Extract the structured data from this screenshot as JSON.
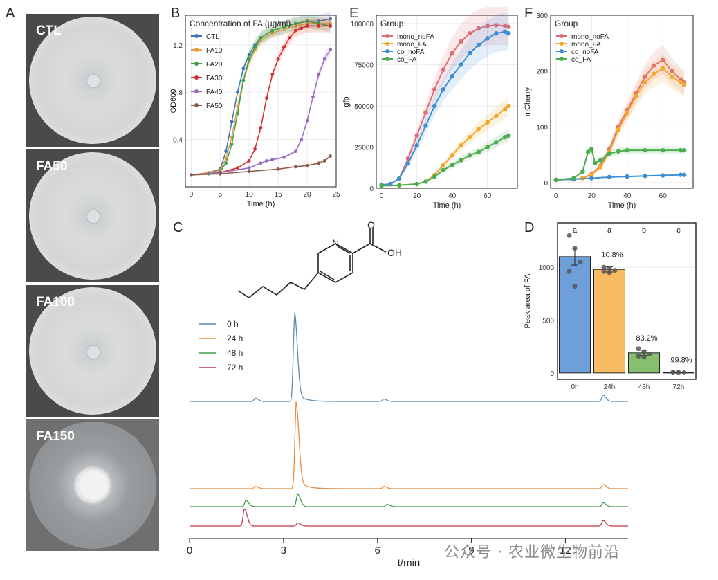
{
  "panel_letters": {
    "A": "A",
    "B": "B",
    "C": "C",
    "D": "D",
    "E": "E",
    "F": "F"
  },
  "panelA": {
    "plates": [
      {
        "label": "CTL"
      },
      {
        "label": "FA50"
      },
      {
        "label": "FA100"
      },
      {
        "label": "FA150"
      }
    ]
  },
  "colors": {
    "CTL": "#3a74b2",
    "FA10": "#f09a3e",
    "FA20": "#3f9e46",
    "FA30": "#d42a2a",
    "FA40": "#9a6bbf",
    "FA50": "#8b5a4b",
    "mono_noFA": "#e06c75",
    "mono_FA": "#f4a82c",
    "co_noFA": "#3d8ed4",
    "co_FA": "#4cad4f",
    "c0h": "#5b8cb0",
    "c24h": "#e88c3c",
    "c48h": "#3e9a4a",
    "c72h": "#c2384a"
  },
  "chart_data": [
    {
      "panel": "B",
      "type": "line",
      "title": "Concentration of FA (μg/ml)",
      "xlabel": "Time (h)",
      "ylabel": "OD600",
      "xlim": [
        -1,
        25
      ],
      "ylim": [
        0,
        1.45
      ],
      "xticks": [
        "0",
        "5",
        "10",
        "15",
        "20",
        "25"
      ],
      "yticks": [
        "0.4",
        "0.8",
        "1.2"
      ],
      "legend_position": "top-left",
      "series": [
        {
          "name": "CTL",
          "x": [
            0,
            3,
            5,
            6,
            7,
            8,
            9,
            10,
            11,
            12,
            14,
            16,
            18,
            20,
            22,
            24
          ],
          "y": [
            0.1,
            0.12,
            0.15,
            0.3,
            0.55,
            0.8,
            1.0,
            1.12,
            1.2,
            1.26,
            1.32,
            1.35,
            1.38,
            1.4,
            1.4,
            1.42
          ]
        },
        {
          "name": "FA10",
          "x": [
            0,
            3,
            5,
            6,
            7,
            8,
            9,
            10,
            11,
            12,
            14,
            16,
            18,
            20,
            22,
            24
          ],
          "y": [
            0.1,
            0.12,
            0.14,
            0.24,
            0.42,
            0.68,
            0.9,
            1.06,
            1.16,
            1.24,
            1.3,
            1.33,
            1.36,
            1.38,
            1.38,
            1.38
          ]
        },
        {
          "name": "FA20",
          "x": [
            0,
            3,
            5,
            6,
            7,
            8,
            9,
            10,
            11,
            12,
            14,
            16,
            18,
            20,
            22,
            24
          ],
          "y": [
            0.1,
            0.11,
            0.13,
            0.2,
            0.36,
            0.62,
            0.9,
            1.08,
            1.18,
            1.26,
            1.32,
            1.35,
            1.38,
            1.4,
            1.38,
            1.36
          ]
        },
        {
          "name": "FA30",
          "x": [
            0,
            5,
            8,
            10,
            11,
            12,
            13,
            14,
            15,
            16,
            17,
            18,
            19,
            20,
            22,
            24
          ],
          "y": [
            0.1,
            0.12,
            0.16,
            0.22,
            0.32,
            0.5,
            0.75,
            0.95,
            1.08,
            1.18,
            1.26,
            1.32,
            1.34,
            1.36,
            1.36,
            1.36
          ]
        },
        {
          "name": "FA40",
          "x": [
            0,
            5,
            10,
            12,
            13,
            14,
            16,
            18,
            19,
            20,
            21,
            22,
            23,
            24
          ],
          "y": [
            0.1,
            0.12,
            0.16,
            0.2,
            0.22,
            0.23,
            0.25,
            0.3,
            0.4,
            0.56,
            0.76,
            0.95,
            1.08,
            1.16
          ]
        },
        {
          "name": "FA50",
          "x": [
            0,
            5,
            10,
            15,
            18,
            20,
            22,
            23,
            24
          ],
          "y": [
            0.1,
            0.11,
            0.13,
            0.15,
            0.17,
            0.18,
            0.2,
            0.22,
            0.26
          ]
        }
      ]
    },
    {
      "panel": "E",
      "type": "line",
      "title": "Group",
      "xlabel": "Time (h)",
      "ylabel": "gfp",
      "xlim": [
        -3,
        77
      ],
      "ylim": [
        0,
        105000
      ],
      "xticks": [
        "0",
        "20",
        "40",
        "60"
      ],
      "yticks": [
        "0",
        "25000",
        "50000",
        "75000",
        "100000"
      ],
      "legend_position": "top-left",
      "series": [
        {
          "name": "mono_noFA",
          "x": [
            0,
            5,
            10,
            15,
            20,
            25,
            30,
            35,
            40,
            45,
            50,
            55,
            60,
            65,
            70,
            72
          ],
          "y": [
            2000,
            2500,
            6000,
            18000,
            32000,
            46000,
            60000,
            72000,
            82000,
            89000,
            94000,
            97000,
            98500,
            99000,
            98500,
            98000
          ]
        },
        {
          "name": "mono_FA",
          "x": [
            0,
            10,
            20,
            25,
            30,
            35,
            40,
            45,
            50,
            55,
            60,
            65,
            70,
            72
          ],
          "y": [
            1500,
            1800,
            2500,
            4000,
            8000,
            14000,
            20000,
            26000,
            31000,
            36000,
            40000,
            44000,
            48000,
            50000
          ]
        },
        {
          "name": "co_noFA",
          "x": [
            0,
            5,
            10,
            15,
            20,
            25,
            30,
            35,
            40,
            45,
            50,
            55,
            60,
            65,
            70,
            72
          ],
          "y": [
            2000,
            2500,
            6000,
            15000,
            26000,
            38000,
            50000,
            60000,
            68000,
            75000,
            82000,
            87000,
            91000,
            94000,
            95000,
            94000
          ]
        },
        {
          "name": "co_FA",
          "x": [
            0,
            10,
            20,
            25,
            30,
            35,
            40,
            45,
            50,
            55,
            60,
            65,
            70,
            72
          ],
          "y": [
            1500,
            1800,
            2500,
            4000,
            7000,
            11000,
            14000,
            17000,
            20000,
            22000,
            25000,
            28000,
            31000,
            32000
          ]
        }
      ]
    },
    {
      "panel": "F",
      "type": "line",
      "title": "Group",
      "xlabel": "Time (h)",
      "ylabel": "mCherry",
      "xlim": [
        -3,
        77
      ],
      "ylim": [
        -10,
        300
      ],
      "xticks": [
        "0",
        "20",
        "40",
        "60"
      ],
      "yticks": [
        "0",
        "100",
        "200",
        "300"
      ],
      "legend_position": "top-left",
      "series": [
        {
          "name": "mono_noFA",
          "x": [
            0,
            10,
            15,
            20,
            25,
            30,
            35,
            40,
            45,
            50,
            55,
            60,
            65,
            70,
            72
          ],
          "y": [
            5,
            6,
            8,
            15,
            30,
            60,
            100,
            130,
            160,
            190,
            210,
            220,
            200,
            185,
            180
          ]
        },
        {
          "name": "mono_FA",
          "x": [
            0,
            10,
            15,
            20,
            25,
            30,
            35,
            40,
            45,
            50,
            55,
            60,
            65,
            70,
            72
          ],
          "y": [
            5,
            6,
            8,
            14,
            28,
            55,
            95,
            125,
            155,
            180,
            195,
            205,
            190,
            180,
            175
          ]
        },
        {
          "name": "co_noFA",
          "x": [
            0,
            10,
            20,
            30,
            40,
            50,
            60,
            70,
            72
          ],
          "y": [
            5,
            6,
            8,
            10,
            11,
            12,
            13,
            14,
            14
          ]
        },
        {
          "name": "co_FA",
          "x": [
            0,
            10,
            15,
            18,
            20,
            22,
            25,
            30,
            35,
            40,
            50,
            60,
            70,
            72
          ],
          "y": [
            5,
            8,
            20,
            55,
            60,
            35,
            40,
            52,
            56,
            58,
            58,
            58,
            58,
            58
          ]
        }
      ]
    },
    {
      "panel": "D",
      "type": "bar",
      "categories": [
        "0h",
        "24h",
        "48h",
        "72h"
      ],
      "values": [
        1100,
        980,
        190,
        5
      ],
      "errors": [
        80,
        25,
        25,
        3
      ],
      "points": [
        [
          1300,
          1180,
          1050,
          960,
          820
        ],
        [
          1000,
          990,
          970,
          960,
          950
        ],
        [
          230,
          200,
          180,
          160,
          150
        ],
        [
          8,
          5,
          3,
          2,
          1
        ]
      ],
      "bar_colors": [
        "#6f9fd8",
        "#f7bb62",
        "#86c06f",
        "#a9a9a9"
      ],
      "sig_labels": [
        "a",
        "a",
        "b",
        "c"
      ],
      "pct_labels": [
        "",
        "10.8%",
        "83.2%",
        "99.8%"
      ],
      "xlabel": "",
      "ylabel": "Peak area of FA",
      "ylim": [
        -60,
        1420
      ],
      "yticks": [
        "0",
        "500",
        "1000"
      ]
    },
    {
      "panel": "C",
      "type": "line",
      "title": "",
      "xlabel": "t/min",
      "ylabel": "",
      "xlim": [
        0,
        14
      ],
      "xticks": [
        "0",
        "3",
        "6",
        "9",
        "12"
      ],
      "legend_position": "top-left",
      "series": [
        {
          "name": "0 h",
          "baseline": 0,
          "peaks": [
            [
              2.1,
              0.04
            ],
            [
              3.35,
              1.0
            ],
            [
              6.2,
              0.03
            ],
            [
              13.2,
              0.08
            ]
          ]
        },
        {
          "name": "24 h",
          "baseline": 1,
          "peaks": [
            [
              2.1,
              0.03
            ],
            [
              3.4,
              1.0
            ],
            [
              6.2,
              0.03
            ],
            [
              13.2,
              0.06
            ]
          ]
        },
        {
          "name": "48 h",
          "baseline": 2,
          "peaks": [
            [
              1.8,
              0.08
            ],
            [
              3.45,
              0.16
            ],
            [
              6.3,
              0.03
            ],
            [
              13.2,
              0.05
            ]
          ]
        },
        {
          "name": "72 h",
          "baseline": 3,
          "peaks": [
            [
              1.75,
              0.22
            ],
            [
              3.45,
              0.04
            ],
            [
              13.2,
              0.07
            ]
          ]
        }
      ]
    }
  ],
  "molecule": {
    "n_label": "N",
    "o_label": "O",
    "oh_label": "OH"
  },
  "watermark": "公众号 · 农业微生物前沿"
}
